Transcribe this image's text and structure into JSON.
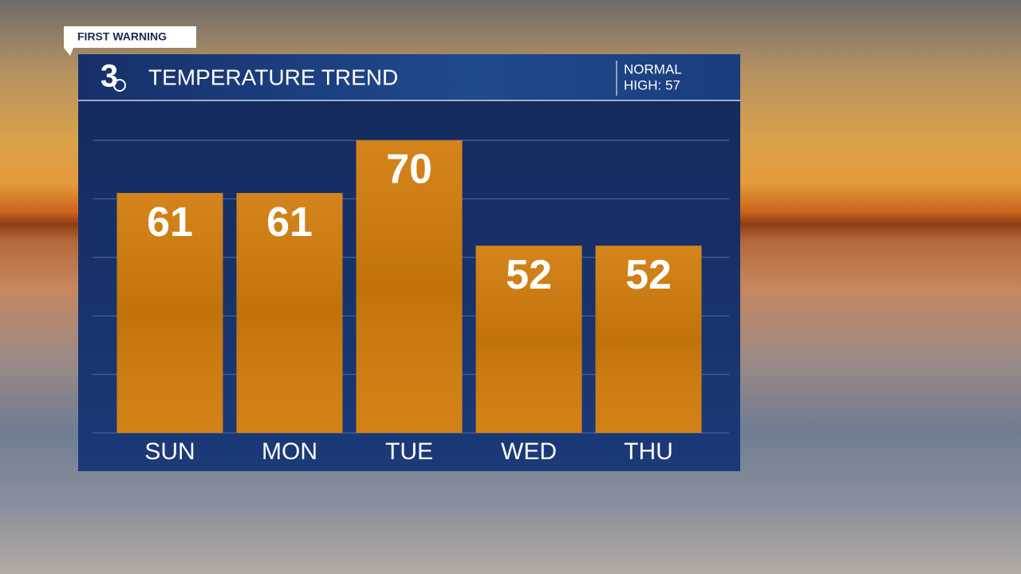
{
  "badge": "FIRST WARNING",
  "chart_data": {
    "type": "bar",
    "logo": "3",
    "title": "TEMPERATURE TREND",
    "annotation": [
      "NORMAL",
      "HIGH: 57"
    ],
    "categories": [
      "SUN",
      "MON",
      "TUE",
      "WED",
      "THU"
    ],
    "values": [
      61,
      61,
      70,
      52,
      52
    ],
    "color": "#d17c0c",
    "ylim": [
      20,
      75
    ],
    "yticks": [
      20,
      30,
      40,
      50,
      60,
      70
    ],
    "grid": true
  }
}
